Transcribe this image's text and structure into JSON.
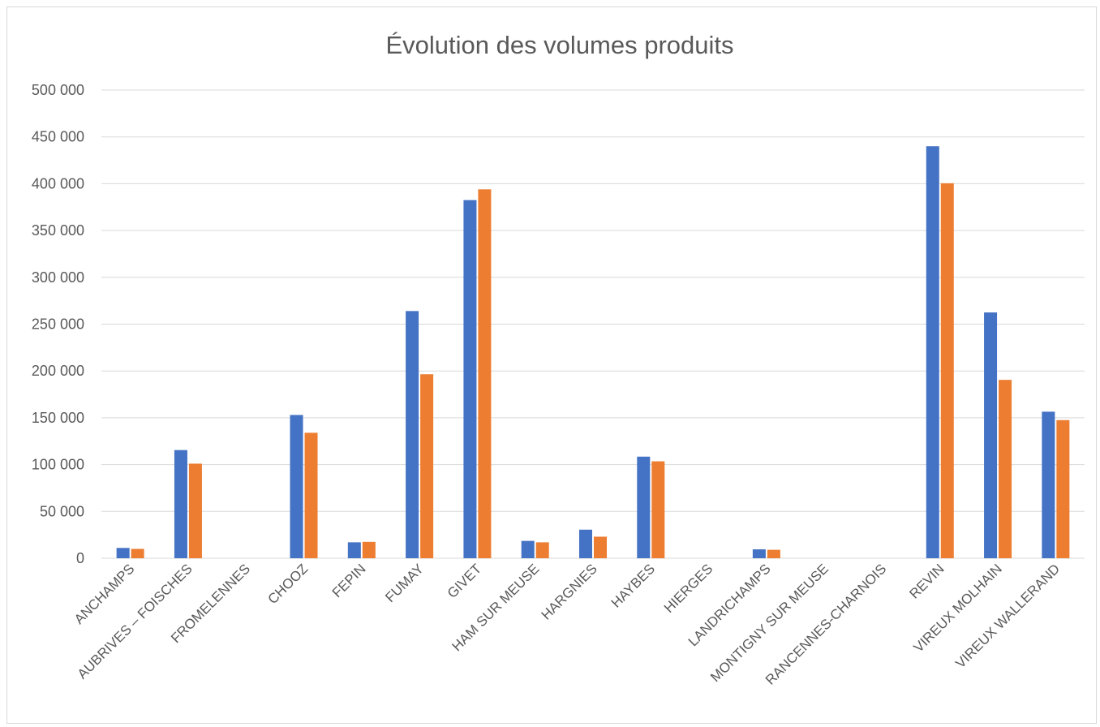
{
  "chart_data": {
    "type": "bar",
    "title": "Évolution des volumes produits",
    "xlabel": "",
    "ylabel": "",
    "ylim": [
      0,
      500000
    ],
    "yticks": [
      0,
      50000,
      100000,
      150000,
      200000,
      250000,
      300000,
      350000,
      400000,
      450000,
      500000
    ],
    "ytick_labels": [
      "0",
      "50 000",
      "100 000",
      "150 000",
      "200 000",
      "250 000",
      "300 000",
      "350 000",
      "400 000",
      "450 000",
      "500 000"
    ],
    "grid": true,
    "legend": "none",
    "categories": [
      "ANCHAMPS",
      "AUBRIVES – FOISCHES",
      "FROMELENNES",
      "CHOOZ",
      "FEPIN",
      "FUMAY",
      "GIVET",
      "HAM SUR MEUSE",
      "HARGNIES",
      "HAYBES",
      "HIERGES",
      "LANDRICHAMPS",
      "MONTIGNY SUR MEUSE",
      "RANCENNES-CHARNOIS",
      "REVIN",
      "VIREUX MOLHAIN",
      "VIREUX WALLERAND"
    ],
    "series": [
      {
        "color": "#4472c4",
        "values": [
          11000,
          115500,
          0,
          153000,
          17000,
          264000,
          382500,
          18500,
          30500,
          108500,
          0,
          9500,
          0,
          0,
          440000,
          262500,
          156500
        ]
      },
      {
        "color": "#ed7d31",
        "values": [
          10000,
          101000,
          0,
          134000,
          17500,
          196500,
          394000,
          17000,
          23000,
          103500,
          0,
          9000,
          0,
          0,
          400500,
          190500,
          147500
        ]
      }
    ]
  }
}
